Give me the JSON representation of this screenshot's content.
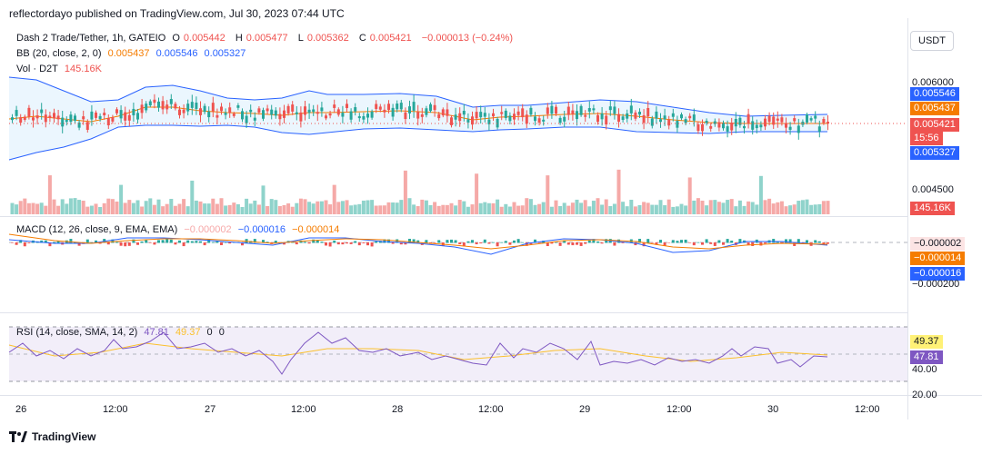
{
  "header": {
    "published_line": "reflectordayo published on TradingView.com, Jul 30, 2023 07:44 UTC"
  },
  "legend": {
    "symbol": "Dash 2 Trade/Tether, 1h, GATEIO",
    "open_label": "O",
    "open": "0.005442",
    "high_label": "H",
    "high": "0.005477",
    "low_label": "L",
    "low": "0.005362",
    "close_label": "C",
    "close": "0.005421",
    "change": "−0.000013 (−0.24%)",
    "bb_label": "BB (20, close, 2, 0)",
    "bb_basis": "0.005437",
    "bb_upper": "0.005546",
    "bb_lower": "0.005327",
    "vol_label": "Vol · D2T",
    "vol_value": "145.16K"
  },
  "currency_button": "USDT",
  "price_axis": {
    "ticks": [
      "0.006000",
      "0.004500"
    ],
    "badges": {
      "upper": "0.005546",
      "basis": "0.005437",
      "last": "0.005421",
      "countdown": "15:56",
      "lower": "0.005327",
      "volume": "145.16K"
    }
  },
  "macd": {
    "label": "MACD (12, 26, close, 9, EMA, EMA)",
    "hist": "−0.000002",
    "macd": "−0.000016",
    "signal": "−0.000014",
    "axis_tick": "−0.000200",
    "badges": {
      "hist": "−0.000002",
      "signal": "−0.000014",
      "macd": "−0.000016"
    }
  },
  "rsi": {
    "label": "RSI (14, close, SMA, 14, 2)",
    "rsi": "47.81",
    "sma": "49.37",
    "v3": "0",
    "v4": "0",
    "axis_ticks": [
      "40.00",
      "20.00"
    ],
    "badges": {
      "sma": "49.37",
      "rsi": "47.81"
    }
  },
  "time_axis": [
    "26",
    "12:00",
    "27",
    "12:00",
    "28",
    "12:00",
    "29",
    "12:00",
    "30",
    "12:00"
  ],
  "footer": {
    "brand": "TradingView"
  },
  "colors": {
    "up": "#26a69a",
    "down": "#ef5350",
    "bb_upper": "#2962ff",
    "bb_basis": "#f57c00",
    "macd": "#2962ff",
    "signal": "#f57c00",
    "rsi": "#7e57c2",
    "rsi_sma": "#fbc02d"
  }
}
